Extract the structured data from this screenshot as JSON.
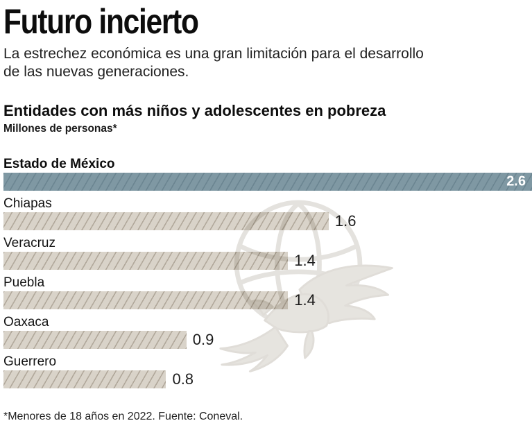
{
  "header": {
    "title": "Futuro incierto",
    "subtitle_lines": [
      "La estrechez económica es una gran limitación para el desarrollo",
      "de las nuevas generaciones."
    ]
  },
  "chart_header": {
    "heading": "Entidades con más niños y adolescentes en pobreza",
    "unit_label": "Millones de personas*"
  },
  "chart_data": {
    "type": "bar",
    "orientation": "horizontal",
    "title": "Entidades con más niños y adolescentes en pobreza",
    "unit": "Millones de personas*",
    "categories": [
      "Estado de México",
      "Chiapas",
      "Veracruz",
      "Puebla",
      "Oaxaca",
      "Guerrero"
    ],
    "values": [
      2.6,
      1.6,
      1.4,
      1.4,
      0.9,
      0.8
    ],
    "value_labels": [
      "2.6",
      "1.6",
      "1.4",
      "1.4",
      "0.9",
      "0.8"
    ],
    "xlim": [
      0,
      2.6
    ],
    "grid": false,
    "legend": false,
    "highlight_index": 0,
    "highlight_fill": "#7f98a3",
    "highlight_hatch": "#6b8591",
    "highlight_value_color": "#ffffff",
    "bar_fill": "#d9d3c9",
    "bar_hatch": "#b1a89b",
    "value_color": "#1c1c1c"
  },
  "watermark": {
    "icon": "eagle-globe-watermark-icon",
    "color": "#e2dfda"
  },
  "footer": {
    "note": "*Menores de 18 años en 2022. Fuente: Coneval."
  }
}
